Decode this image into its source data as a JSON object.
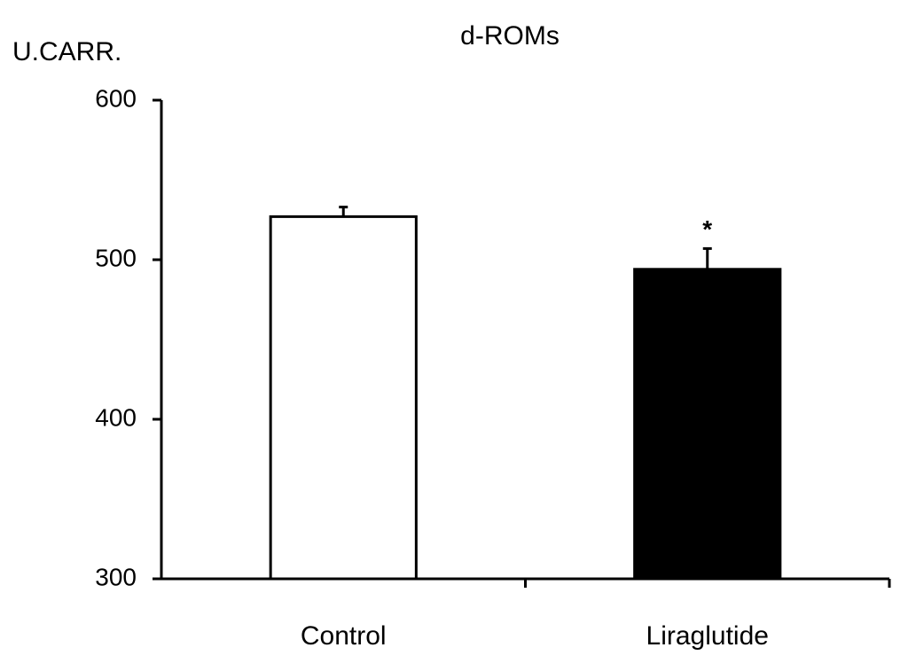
{
  "chart_data": {
    "type": "bar",
    "title": "d-ROMs",
    "y_label": "U.CARR.",
    "categories": [
      "Control",
      "Liraglutide"
    ],
    "values": [
      527,
      494
    ],
    "errors": [
      6,
      13
    ],
    "colors": [
      "#ffffff",
      "#000000"
    ],
    "ylim": [
      300,
      600
    ],
    "yticks": [
      300,
      400,
      500,
      600
    ],
    "grid": false,
    "annotations": [
      "*"
    ]
  }
}
